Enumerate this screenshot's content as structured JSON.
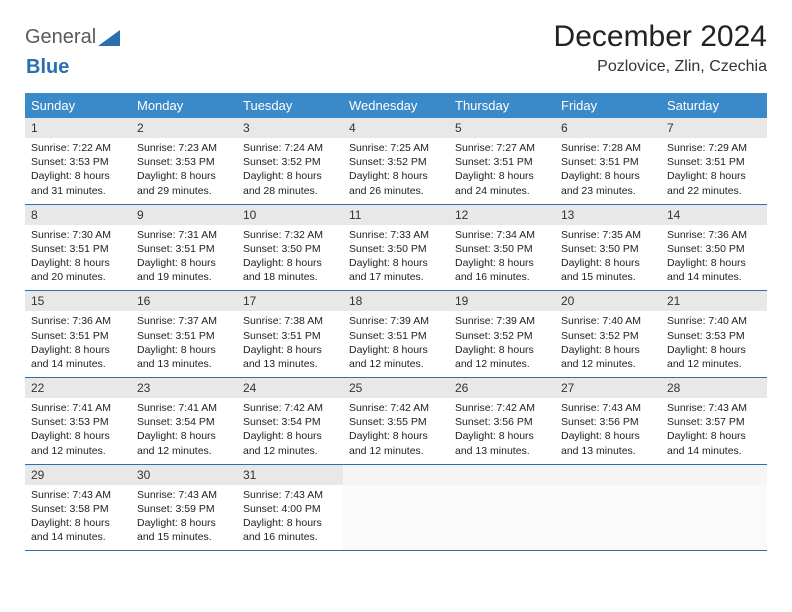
{
  "logo": {
    "part1": "General",
    "part2": "Blue"
  },
  "title": "December 2024",
  "location": "Pozlovice, Zlin, Czechia",
  "colors": {
    "header_bg": "#3a89c9",
    "header_text": "#ffffff",
    "daynum_bg": "#e8e8e8",
    "border": "#2b6fb0",
    "logo_gray": "#5a5a5a",
    "logo_blue": "#2b6fb0"
  },
  "weekdays": [
    "Sunday",
    "Monday",
    "Tuesday",
    "Wednesday",
    "Thursday",
    "Friday",
    "Saturday"
  ],
  "weeks": [
    {
      "days": [
        {
          "num": "1",
          "sunrise": "Sunrise: 7:22 AM",
          "sunset": "Sunset: 3:53 PM",
          "daylight": "Daylight: 8 hours and 31 minutes."
        },
        {
          "num": "2",
          "sunrise": "Sunrise: 7:23 AM",
          "sunset": "Sunset: 3:53 PM",
          "daylight": "Daylight: 8 hours and 29 minutes."
        },
        {
          "num": "3",
          "sunrise": "Sunrise: 7:24 AM",
          "sunset": "Sunset: 3:52 PM",
          "daylight": "Daylight: 8 hours and 28 minutes."
        },
        {
          "num": "4",
          "sunrise": "Sunrise: 7:25 AM",
          "sunset": "Sunset: 3:52 PM",
          "daylight": "Daylight: 8 hours and 26 minutes."
        },
        {
          "num": "5",
          "sunrise": "Sunrise: 7:27 AM",
          "sunset": "Sunset: 3:51 PM",
          "daylight": "Daylight: 8 hours and 24 minutes."
        },
        {
          "num": "6",
          "sunrise": "Sunrise: 7:28 AM",
          "sunset": "Sunset: 3:51 PM",
          "daylight": "Daylight: 8 hours and 23 minutes."
        },
        {
          "num": "7",
          "sunrise": "Sunrise: 7:29 AM",
          "sunset": "Sunset: 3:51 PM",
          "daylight": "Daylight: 8 hours and 22 minutes."
        }
      ]
    },
    {
      "days": [
        {
          "num": "8",
          "sunrise": "Sunrise: 7:30 AM",
          "sunset": "Sunset: 3:51 PM",
          "daylight": "Daylight: 8 hours and 20 minutes."
        },
        {
          "num": "9",
          "sunrise": "Sunrise: 7:31 AM",
          "sunset": "Sunset: 3:51 PM",
          "daylight": "Daylight: 8 hours and 19 minutes."
        },
        {
          "num": "10",
          "sunrise": "Sunrise: 7:32 AM",
          "sunset": "Sunset: 3:50 PM",
          "daylight": "Daylight: 8 hours and 18 minutes."
        },
        {
          "num": "11",
          "sunrise": "Sunrise: 7:33 AM",
          "sunset": "Sunset: 3:50 PM",
          "daylight": "Daylight: 8 hours and 17 minutes."
        },
        {
          "num": "12",
          "sunrise": "Sunrise: 7:34 AM",
          "sunset": "Sunset: 3:50 PM",
          "daylight": "Daylight: 8 hours and 16 minutes."
        },
        {
          "num": "13",
          "sunrise": "Sunrise: 7:35 AM",
          "sunset": "Sunset: 3:50 PM",
          "daylight": "Daylight: 8 hours and 15 minutes."
        },
        {
          "num": "14",
          "sunrise": "Sunrise: 7:36 AM",
          "sunset": "Sunset: 3:50 PM",
          "daylight": "Daylight: 8 hours and 14 minutes."
        }
      ]
    },
    {
      "days": [
        {
          "num": "15",
          "sunrise": "Sunrise: 7:36 AM",
          "sunset": "Sunset: 3:51 PM",
          "daylight": "Daylight: 8 hours and 14 minutes."
        },
        {
          "num": "16",
          "sunrise": "Sunrise: 7:37 AM",
          "sunset": "Sunset: 3:51 PM",
          "daylight": "Daylight: 8 hours and 13 minutes."
        },
        {
          "num": "17",
          "sunrise": "Sunrise: 7:38 AM",
          "sunset": "Sunset: 3:51 PM",
          "daylight": "Daylight: 8 hours and 13 minutes."
        },
        {
          "num": "18",
          "sunrise": "Sunrise: 7:39 AM",
          "sunset": "Sunset: 3:51 PM",
          "daylight": "Daylight: 8 hours and 12 minutes."
        },
        {
          "num": "19",
          "sunrise": "Sunrise: 7:39 AM",
          "sunset": "Sunset: 3:52 PM",
          "daylight": "Daylight: 8 hours and 12 minutes."
        },
        {
          "num": "20",
          "sunrise": "Sunrise: 7:40 AM",
          "sunset": "Sunset: 3:52 PM",
          "daylight": "Daylight: 8 hours and 12 minutes."
        },
        {
          "num": "21",
          "sunrise": "Sunrise: 7:40 AM",
          "sunset": "Sunset: 3:53 PM",
          "daylight": "Daylight: 8 hours and 12 minutes."
        }
      ]
    },
    {
      "days": [
        {
          "num": "22",
          "sunrise": "Sunrise: 7:41 AM",
          "sunset": "Sunset: 3:53 PM",
          "daylight": "Daylight: 8 hours and 12 minutes."
        },
        {
          "num": "23",
          "sunrise": "Sunrise: 7:41 AM",
          "sunset": "Sunset: 3:54 PM",
          "daylight": "Daylight: 8 hours and 12 minutes."
        },
        {
          "num": "24",
          "sunrise": "Sunrise: 7:42 AM",
          "sunset": "Sunset: 3:54 PM",
          "daylight": "Daylight: 8 hours and 12 minutes."
        },
        {
          "num": "25",
          "sunrise": "Sunrise: 7:42 AM",
          "sunset": "Sunset: 3:55 PM",
          "daylight": "Daylight: 8 hours and 12 minutes."
        },
        {
          "num": "26",
          "sunrise": "Sunrise: 7:42 AM",
          "sunset": "Sunset: 3:56 PM",
          "daylight": "Daylight: 8 hours and 13 minutes."
        },
        {
          "num": "27",
          "sunrise": "Sunrise: 7:43 AM",
          "sunset": "Sunset: 3:56 PM",
          "daylight": "Daylight: 8 hours and 13 minutes."
        },
        {
          "num": "28",
          "sunrise": "Sunrise: 7:43 AM",
          "sunset": "Sunset: 3:57 PM",
          "daylight": "Daylight: 8 hours and 14 minutes."
        }
      ]
    },
    {
      "days": [
        {
          "num": "29",
          "sunrise": "Sunrise: 7:43 AM",
          "sunset": "Sunset: 3:58 PM",
          "daylight": "Daylight: 8 hours and 14 minutes."
        },
        {
          "num": "30",
          "sunrise": "Sunrise: 7:43 AM",
          "sunset": "Sunset: 3:59 PM",
          "daylight": "Daylight: 8 hours and 15 minutes."
        },
        {
          "num": "31",
          "sunrise": "Sunrise: 7:43 AM",
          "sunset": "Sunset: 4:00 PM",
          "daylight": "Daylight: 8 hours and 16 minutes."
        },
        {
          "empty": true
        },
        {
          "empty": true
        },
        {
          "empty": true
        },
        {
          "empty": true
        }
      ]
    }
  ]
}
